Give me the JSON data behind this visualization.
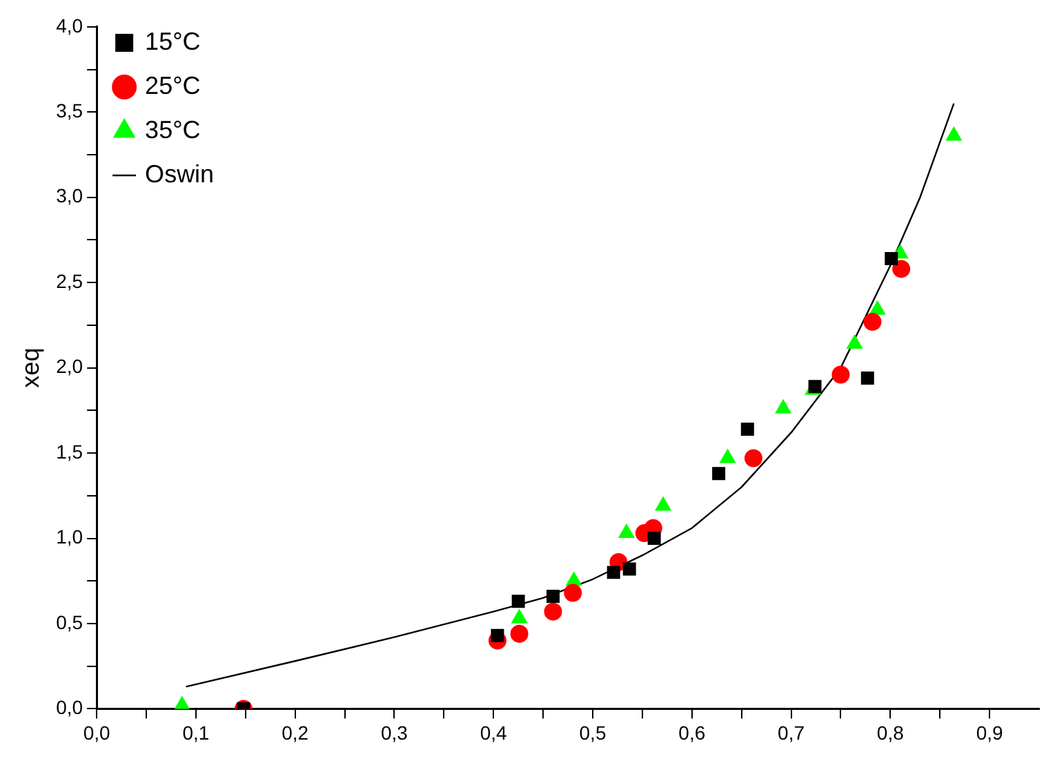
{
  "chart_data": {
    "type": "scatter",
    "ylabel": "xeq",
    "legend": "top left",
    "grid": false,
    "xlim": [
      0,
      0.95
    ],
    "ylim": [
      0,
      4
    ],
    "xticks": [
      {
        "value": 0,
        "label": "0,0"
      },
      {
        "value": 0.05,
        "label": null
      },
      {
        "value": 0.1,
        "label": "0,1"
      },
      {
        "value": 0.15,
        "label": null
      },
      {
        "value": 0.2,
        "label": "0,2"
      },
      {
        "value": 0.25,
        "label": null
      },
      {
        "value": 0.3,
        "label": "0,3"
      },
      {
        "value": 0.35,
        "label": null
      },
      {
        "value": 0.4,
        "label": "0,4"
      },
      {
        "value": 0.45,
        "label": null
      },
      {
        "value": 0.5,
        "label": "0,5"
      },
      {
        "value": 0.55,
        "label": null
      },
      {
        "value": 0.6,
        "label": "0,6"
      },
      {
        "value": 0.65,
        "label": null
      },
      {
        "value": 0.7,
        "label": "0,7"
      },
      {
        "value": 0.75,
        "label": null
      },
      {
        "value": 0.8,
        "label": "0,8"
      },
      {
        "value": 0.85,
        "label": null
      },
      {
        "value": 0.9,
        "label": "0,9"
      }
    ],
    "yticks": [
      {
        "value": 0,
        "label": "0,0"
      },
      {
        "value": 0.25,
        "label": null
      },
      {
        "value": 0.5,
        "label": "0,5"
      },
      {
        "value": 0.75,
        "label": null
      },
      {
        "value": 1,
        "label": "1,0"
      },
      {
        "value": 1.25,
        "label": null
      },
      {
        "value": 1.5,
        "label": "1,5"
      },
      {
        "value": 1.75,
        "label": null
      },
      {
        "value": 2,
        "label": "2,0"
      },
      {
        "value": 2.25,
        "label": null
      },
      {
        "value": 2.5,
        "label": "2,5"
      },
      {
        "value": 2.75,
        "label": null
      },
      {
        "value": 3,
        "label": "3,0"
      },
      {
        "value": 3.25,
        "label": null
      },
      {
        "value": 3.5,
        "label": "3,5"
      },
      {
        "value": 3.75,
        "label": null
      },
      {
        "value": 4,
        "label": "4,0"
      }
    ],
    "series": [
      {
        "name": "15°C",
        "color": "#000000",
        "marker": "square",
        "x": [
          0.148,
          0.404,
          0.425,
          0.46,
          0.521,
          0.537,
          0.562,
          0.627,
          0.656,
          0.724,
          0.777,
          0.801
        ],
        "values": [
          0.0,
          0.43,
          0.63,
          0.66,
          0.8,
          0.82,
          1.0,
          1.38,
          1.64,
          1.89,
          1.94,
          2.64
        ]
      },
      {
        "name": "25°C",
        "color": "#ff0000",
        "marker": "circle",
        "x": [
          0.148,
          0.404,
          0.426,
          0.46,
          0.48,
          0.526,
          0.552,
          0.561,
          0.662,
          0.75,
          0.782,
          0.811
        ],
        "values": [
          0.0,
          0.4,
          0.44,
          0.57,
          0.68,
          0.86,
          1.03,
          1.06,
          1.47,
          1.96,
          2.27,
          2.58
        ]
      },
      {
        "name": "35°C",
        "color": "#00ff00",
        "marker": "triangle",
        "x": [
          0.086,
          0.426,
          0.481,
          0.534,
          0.571,
          0.636,
          0.692,
          0.722,
          0.764,
          0.787,
          0.81,
          0.864
        ],
        "values": [
          0.02,
          0.53,
          0.75,
          1.03,
          1.19,
          1.47,
          1.76,
          1.87,
          2.14,
          2.34,
          2.67,
          3.36
        ]
      },
      {
        "name": "Oswin",
        "type": "line",
        "color": "#000000",
        "marker": "none",
        "line_style": "solid",
        "x": [
          0.09,
          0.2,
          0.3,
          0.4,
          0.45,
          0.5,
          0.55,
          0.6,
          0.65,
          0.7,
          0.75,
          0.8,
          0.83,
          0.864
        ],
        "values": [
          0.13,
          0.28,
          0.42,
          0.57,
          0.65,
          0.76,
          0.9,
          1.06,
          1.3,
          1.62,
          2.0,
          2.6,
          3.0,
          3.55
        ]
      }
    ]
  }
}
